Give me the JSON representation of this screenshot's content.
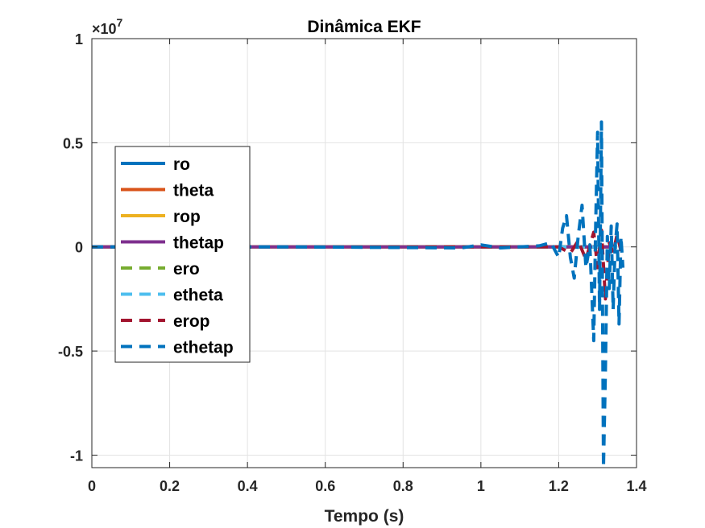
{
  "chart_data": {
    "type": "line",
    "title": "Dinâmica EKF",
    "xlabel": "Tempo (s)",
    "ylabel": "",
    "xlim": [
      0,
      1.4
    ],
    "ylim": [
      -1.06,
      1.0
    ],
    "y_scale_exponent_label": "×10",
    "y_scale_exponent_power": "7",
    "xticks": [
      0,
      0.2,
      0.4,
      0.6,
      0.8,
      1,
      1.2,
      1.4
    ],
    "xtick_labels": [
      "0",
      "0.2",
      "0.4",
      "0.6",
      "0.8",
      "1",
      "1.2",
      "1.4"
    ],
    "yticks": [
      -1,
      -0.5,
      0,
      0.5,
      1
    ],
    "ytick_labels": [
      "-1",
      "-0.5",
      "0",
      "0.5",
      "1"
    ],
    "grid": true,
    "legend_position": "left",
    "series": [
      {
        "name": "ro",
        "color": "#0072BD",
        "style": "solid",
        "x": [
          0,
          1.0,
          1.2,
          1.35
        ],
        "y": [
          0,
          0,
          0,
          0
        ]
      },
      {
        "name": "theta",
        "color": "#D95319",
        "style": "solid",
        "x": [
          0,
          1.0,
          1.2,
          1.35
        ],
        "y": [
          0,
          0,
          0,
          0
        ]
      },
      {
        "name": "rop",
        "color": "#EDB120",
        "style": "solid",
        "x": [
          0,
          1.0,
          1.2,
          1.35
        ],
        "y": [
          0,
          0,
          0,
          0
        ]
      },
      {
        "name": "thetap",
        "color": "#7E2F8E",
        "style": "solid",
        "x": [
          0,
          1.0,
          1.2,
          1.35
        ],
        "y": [
          0,
          0,
          0,
          0
        ]
      },
      {
        "name": "ero",
        "color": "#77AC30",
        "style": "dashed",
        "x": [
          0,
          1.0,
          1.2,
          1.35
        ],
        "y": [
          0,
          0,
          0,
          0
        ]
      },
      {
        "name": "etheta",
        "color": "#4DBEEE",
        "style": "dashed",
        "x": [
          0,
          1.0,
          1.2,
          1.35
        ],
        "y": [
          0,
          0,
          0,
          0
        ]
      },
      {
        "name": "erop",
        "color": "#A2142F",
        "style": "dashed",
        "x": [
          0,
          0.5,
          0.95,
          1.0,
          1.2,
          1.23,
          1.25,
          1.27,
          1.29,
          1.3,
          1.31,
          1.32,
          1.33,
          1.34,
          1.35,
          1.36
        ],
        "y": [
          0,
          0,
          0,
          0,
          0,
          -0.03,
          0.03,
          -0.06,
          0.07,
          -0.1,
          0.08,
          -0.25,
          0.02,
          -0.03,
          0.06,
          -0.02
        ]
      },
      {
        "name": "ethetap",
        "color": "#0072BD",
        "style": "dashed",
        "x": [
          0,
          0.5,
          0.95,
          1.0,
          1.05,
          1.15,
          1.18,
          1.2,
          1.21,
          1.22,
          1.23,
          1.24,
          1.25,
          1.26,
          1.27,
          1.28,
          1.29,
          1.295,
          1.3,
          1.305,
          1.31,
          1.315,
          1.32,
          1.325,
          1.33,
          1.335,
          1.34,
          1.345,
          1.35,
          1.355,
          1.36,
          1.365
        ],
        "y": [
          0,
          0,
          -0.005,
          0.01,
          -0.005,
          0.005,
          0.02,
          -0.05,
          0.09,
          0.15,
          -0.05,
          -0.15,
          0.05,
          0.2,
          -0.1,
          0.01,
          -0.45,
          0.1,
          0.55,
          -0.3,
          0.6,
          -1.06,
          -0.6,
          0.05,
          -0.2,
          0.1,
          -0.3,
          0.0,
          0.11,
          -0.37,
          0.05,
          -0.1
        ]
      }
    ]
  }
}
